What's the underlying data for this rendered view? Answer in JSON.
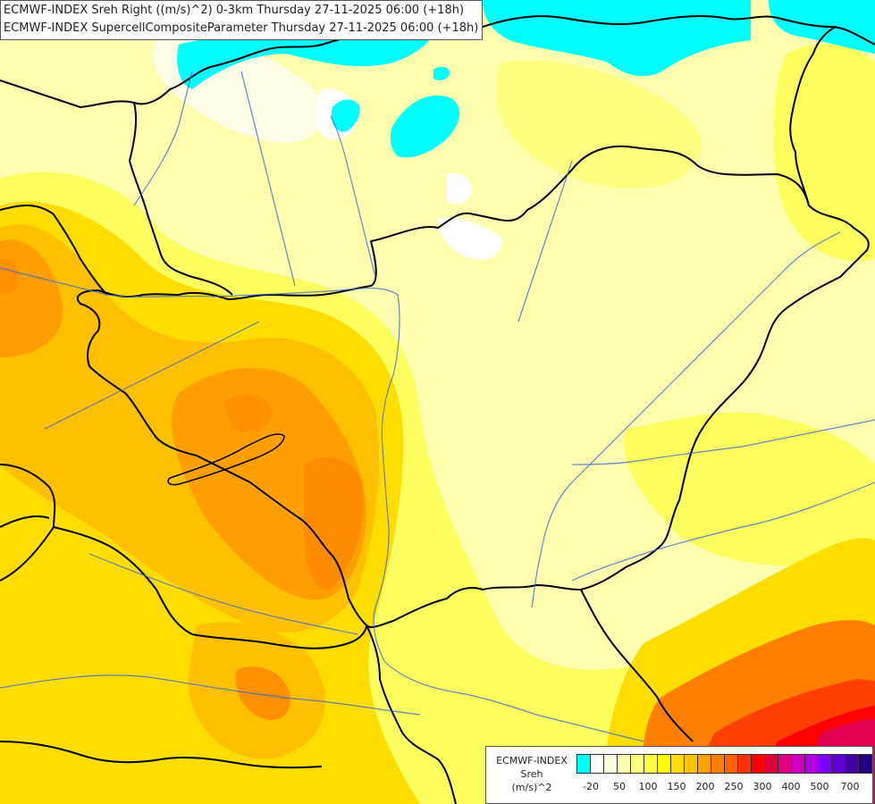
{
  "title": {
    "line1": "ECMWF-INDEX Sreh Right ((m/s)^2) 0-3km Thursday 27-11-2025 06:00 (+18h)",
    "line2": "ECMWF-INDEX SupercellCompositeParameter Thursday 27-11-2025 06:00 (+18h)"
  },
  "legend": {
    "model": "ECMWF-INDEX",
    "param": "Sreh",
    "unit": "(m/s)^2",
    "colors": [
      "#00ffff",
      "#ffffff",
      "#ffffe0",
      "#ffffb0",
      "#ffff80",
      "#ffff40",
      "#ffff00",
      "#ffdd00",
      "#ffc000",
      "#ffa000",
      "#ff8000",
      "#ff6000",
      "#ff3000",
      "#ff0000",
      "#e0003c",
      "#e00080",
      "#d000c0",
      "#b000e0",
      "#8000ff",
      "#6000d0",
      "#4000a0",
      "#200080"
    ],
    "ticks": [
      "-20",
      "50",
      "100",
      "150",
      "200",
      "250",
      "300",
      "400",
      "500",
      "700"
    ]
  },
  "colors": {
    "lake": "#00ffff",
    "border": "#000000",
    "river": "#3a6bd0"
  }
}
